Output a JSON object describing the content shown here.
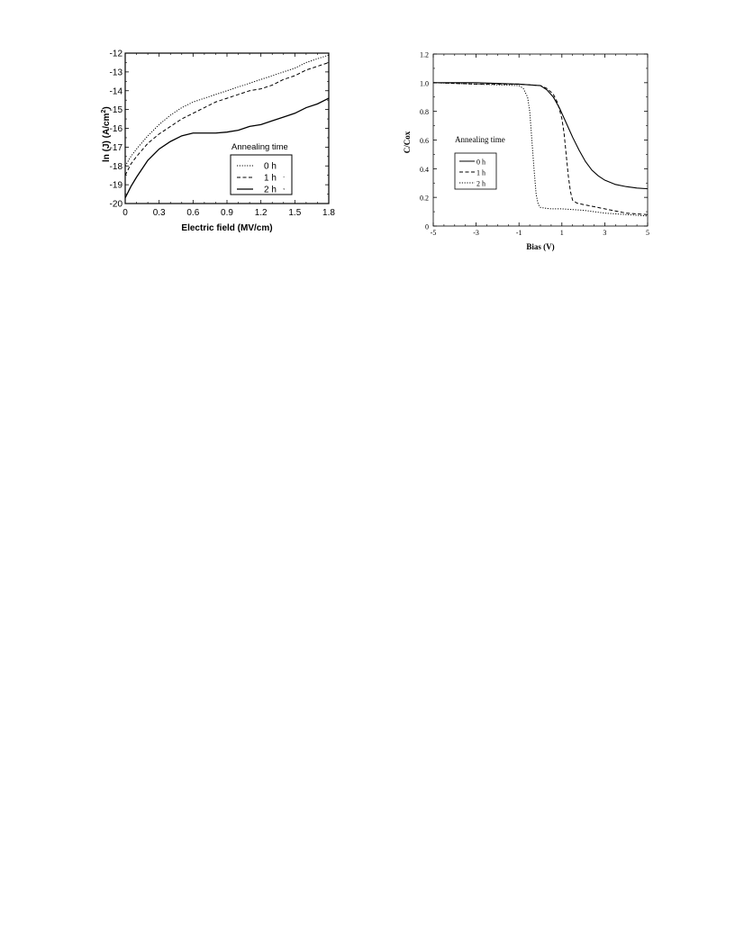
{
  "chart_data": [
    {
      "type": "line",
      "title": "",
      "xlabel": "Electric field (MV/cm)",
      "ylabel_main": "ln (J)   (A/cm",
      "ylabel_sup": "2",
      "ylabel_tail": ")",
      "xlim": [
        0,
        1.8
      ],
      "ylim": [
        -20,
        -12
      ],
      "xticks": [
        0,
        0.3,
        0.6,
        0.9,
        1.2,
        1.5,
        1.8
      ],
      "xtick_labels": [
        "0",
        "0.3",
        "0.6",
        "0.9",
        "1.2",
        "1.5",
        "1.8"
      ],
      "yticks": [
        -20,
        -19,
        -18,
        -17,
        -16,
        -15,
        -14,
        -13,
        -12
      ],
      "ytick_labels": [
        "-20",
        "-19",
        "-18",
        "-17",
        "-16",
        "-15",
        "-14",
        "-13",
        "-12"
      ],
      "grid": false,
      "legend_title": "Annealing time",
      "legend_position": "lower-right",
      "series": [
        {
          "name": "0 h",
          "style": "dotted",
          "x": [
            0,
            0.05,
            0.1,
            0.2,
            0.3,
            0.4,
            0.5,
            0.6,
            0.7,
            0.8,
            0.9,
            1.0,
            1.1,
            1.2,
            1.3,
            1.4,
            1.5,
            1.6,
            1.7,
            1.8
          ],
          "y": [
            -18.0,
            -17.5,
            -17.1,
            -16.4,
            -15.8,
            -15.3,
            -14.9,
            -14.6,
            -14.4,
            -14.2,
            -14.0,
            -13.8,
            -13.6,
            -13.4,
            -13.2,
            -13.0,
            -12.8,
            -12.5,
            -12.3,
            -12.1
          ]
        },
        {
          "name": "1 h",
          "style": "dashed",
          "x": [
            0,
            0.05,
            0.1,
            0.2,
            0.3,
            0.4,
            0.5,
            0.6,
            0.7,
            0.8,
            0.9,
            1.0,
            1.1,
            1.2,
            1.3,
            1.4,
            1.5,
            1.6,
            1.7,
            1.8
          ],
          "y": [
            -18.5,
            -17.9,
            -17.5,
            -16.8,
            -16.3,
            -15.9,
            -15.5,
            -15.2,
            -14.9,
            -14.6,
            -14.4,
            -14.2,
            -14.0,
            -13.9,
            -13.7,
            -13.4,
            -13.2,
            -12.9,
            -12.7,
            -12.5
          ]
        },
        {
          "name": "2 h",
          "style": "solid",
          "x": [
            0,
            0.05,
            0.1,
            0.2,
            0.3,
            0.4,
            0.5,
            0.6,
            0.7,
            0.8,
            0.9,
            1.0,
            1.1,
            1.2,
            1.3,
            1.4,
            1.5,
            1.6,
            1.7,
            1.8
          ],
          "y": [
            -19.7,
            -19.1,
            -18.6,
            -17.7,
            -17.1,
            -16.7,
            -16.4,
            -16.25,
            -16.25,
            -16.25,
            -16.2,
            -16.1,
            -15.9,
            -15.8,
            -15.6,
            -15.4,
            -15.2,
            -14.9,
            -14.7,
            -14.4
          ]
        }
      ],
      "legend_marks": [
        ".",
        ","
      ]
    },
    {
      "type": "line",
      "title": "",
      "xlabel": "Bias (V)",
      "ylabel": "C/Cox",
      "xlim": [
        -5,
        5
      ],
      "ylim": [
        0,
        1.2
      ],
      "xticks": [
        -5,
        -3,
        -1,
        1,
        3,
        5
      ],
      "xtick_labels": [
        "-5",
        "-3",
        "-1",
        "1",
        "3",
        "5"
      ],
      "yticks": [
        0,
        0.2,
        0.4,
        0.6,
        0.8,
        1.0,
        1.2
      ],
      "ytick_labels": [
        "0",
        "0.2",
        "0.4",
        "0.6",
        "0.8",
        "1.0",
        "1.2"
      ],
      "grid": false,
      "legend_title": "Annealing time",
      "legend_position": "center-left",
      "series": [
        {
          "name": "0 h",
          "style": "solid",
          "x": [
            -5,
            -3,
            -1,
            0,
            0.3,
            0.6,
            0.9,
            1.2,
            1.5,
            1.8,
            2.1,
            2.4,
            2.7,
            3.0,
            3.5,
            4.0,
            4.5,
            5.0
          ],
          "y": [
            1.0,
            1.0,
            0.99,
            0.98,
            0.95,
            0.9,
            0.82,
            0.72,
            0.62,
            0.53,
            0.45,
            0.39,
            0.35,
            0.32,
            0.29,
            0.275,
            0.265,
            0.26
          ]
        },
        {
          "name": "1 h",
          "style": "dashed",
          "x": [
            -5,
            -3,
            -1,
            0,
            0.3,
            0.6,
            0.8,
            1.0,
            1.1,
            1.2,
            1.3,
            1.4,
            1.5,
            1.7,
            2.0,
            3.0,
            4.0,
            5.0
          ],
          "y": [
            1.0,
            0.99,
            0.99,
            0.98,
            0.96,
            0.92,
            0.86,
            0.75,
            0.65,
            0.5,
            0.35,
            0.24,
            0.18,
            0.16,
            0.15,
            0.12,
            0.09,
            0.08
          ]
        },
        {
          "name": "2 h",
          "style": "dotted",
          "x": [
            -5,
            -3,
            -1,
            -0.8,
            -0.6,
            -0.5,
            -0.4,
            -0.3,
            -0.2,
            -0.1,
            0,
            0.2,
            0.5,
            1.0,
            2.0,
            3.0,
            4.0,
            5.0
          ],
          "y": [
            1.0,
            0.99,
            0.98,
            0.96,
            0.9,
            0.8,
            0.6,
            0.4,
            0.22,
            0.15,
            0.13,
            0.125,
            0.12,
            0.12,
            0.11,
            0.09,
            0.08,
            0.07
          ]
        }
      ]
    }
  ]
}
